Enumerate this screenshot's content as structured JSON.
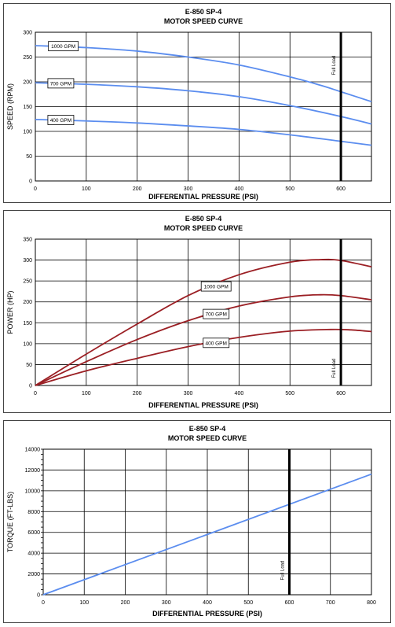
{
  "chart_data": [
    {
      "type": "line",
      "title": "E-850 SP-4",
      "subtitle": "MOTOR SPEED CURVE",
      "xlabel": "DIFFERENTIAL PRESSURE (PSI)",
      "ylabel": "SPEED (RPM)",
      "xlim": [
        0,
        660
      ],
      "ylim": [
        0,
        300
      ],
      "xticks": [
        0,
        100,
        200,
        300,
        400,
        500,
        600
      ],
      "yticks": [
        0,
        50,
        100,
        150,
        200,
        250,
        300
      ],
      "grid": true,
      "line_color": "#5b8def",
      "vline": {
        "x": 600,
        "label": "Full Load"
      },
      "series": [
        {
          "name": "1000 GPM",
          "x": [
            0,
            100,
            200,
            300,
            400,
            500,
            560,
            600,
            660
          ],
          "y": [
            273,
            269,
            262,
            250,
            234,
            210,
            193,
            180,
            160
          ]
        },
        {
          "name": "700 GPM",
          "x": [
            0,
            100,
            200,
            300,
            400,
            500,
            600,
            660
          ],
          "y": [
            198,
            195,
            190,
            182,
            170,
            152,
            130,
            115
          ]
        },
        {
          "name": "400 GPM",
          "x": [
            0,
            100,
            200,
            300,
            400,
            500,
            600,
            660
          ],
          "y": [
            124,
            121,
            117,
            111,
            104,
            93,
            80,
            72
          ]
        }
      ],
      "labels": [
        {
          "series": "1000 GPM",
          "x": 55,
          "y": 272
        },
        {
          "series": "700 GPM",
          "x": 50,
          "y": 197
        },
        {
          "series": "400 GPM",
          "x": 50,
          "y": 123
        }
      ]
    },
    {
      "type": "line",
      "title": "E-850 SP-4",
      "subtitle": "MOTOR SPEED CURVE",
      "xlabel": "DIFFERENTIAL PRESSURE (PSI)",
      "ylabel": "POWER (HP)",
      "xlim": [
        0,
        660
      ],
      "ylim": [
        0,
        350
      ],
      "xticks": [
        0,
        100,
        200,
        300,
        400,
        500,
        600
      ],
      "yticks": [
        0,
        50,
        100,
        150,
        200,
        250,
        300,
        350
      ],
      "grid": true,
      "line_color": "#9b1f24",
      "vline": {
        "x": 600,
        "label": "Full Load"
      },
      "series": [
        {
          "name": "1000 GPM",
          "x": [
            0,
            100,
            200,
            300,
            400,
            500,
            560,
            600,
            660
          ],
          "y": [
            0,
            75,
            147,
            215,
            265,
            295,
            301,
            299,
            284
          ]
        },
        {
          "name": "700 GPM",
          "x": [
            0,
            100,
            200,
            300,
            400,
            500,
            560,
            600,
            660
          ],
          "y": [
            0,
            57,
            110,
            155,
            190,
            212,
            217,
            215,
            205
          ]
        },
        {
          "name": "400 GPM",
          "x": [
            0,
            100,
            200,
            300,
            400,
            500,
            580,
            620,
            660
          ],
          "y": [
            0,
            35,
            65,
            93,
            115,
            130,
            134,
            133,
            129
          ]
        }
      ],
      "labels": [
        {
          "series": "1000 GPM",
          "x": 355,
          "y": 237
        },
        {
          "series": "700 GPM",
          "x": 355,
          "y": 171
        },
        {
          "series": "400 GPM",
          "x": 355,
          "y": 102
        }
      ]
    },
    {
      "type": "line",
      "title": "E-850 SP-4",
      "subtitle": "MOTOR SPEED CURVE",
      "xlabel": "DIFFERENTIAL PRESSURE (PSI)",
      "ylabel": "TORQUE (FT-LBS)",
      "xlim": [
        0,
        800
      ],
      "ylim": [
        0,
        14000
      ],
      "xticks": [
        0,
        100,
        200,
        300,
        400,
        500,
        600,
        700,
        800
      ],
      "yticks": [
        0,
        2000,
        4000,
        6000,
        8000,
        10000,
        12000,
        14000
      ],
      "grid": true,
      "line_color": "#5b8def",
      "vline": {
        "x": 600,
        "label": "Full Load"
      },
      "series": [
        {
          "x": [
            0,
            800
          ],
          "y": [
            0,
            11600
          ]
        }
      ],
      "labels": []
    }
  ]
}
